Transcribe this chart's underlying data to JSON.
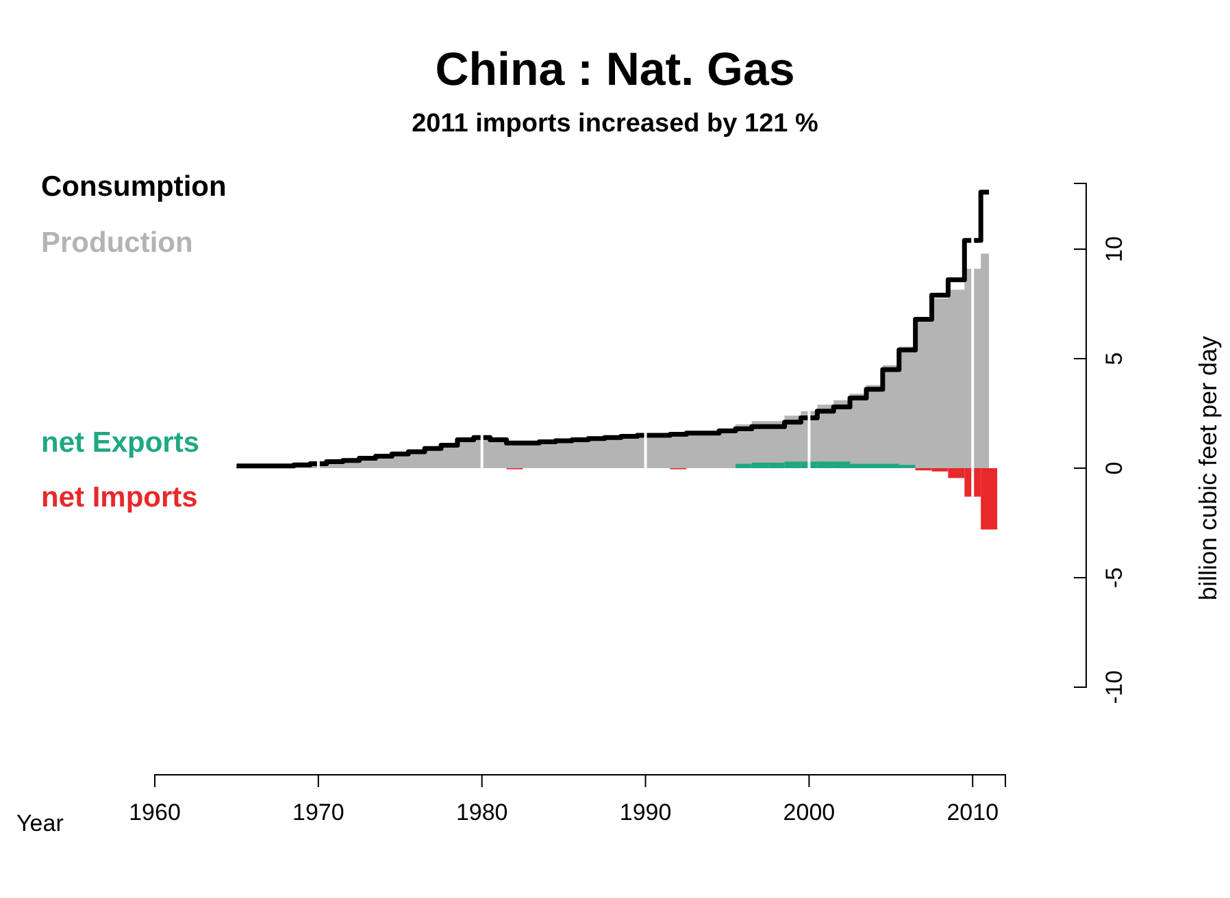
{
  "chart_data": {
    "type": "step",
    "title": "China :  Nat. Gas",
    "subtitle": "2011 imports increased by 121 %",
    "xlabel": "Year",
    "ylabel": "billion cubic feet per day",
    "x": [
      1965,
      1966,
      1967,
      1968,
      1969,
      1970,
      1971,
      1972,
      1973,
      1974,
      1975,
      1976,
      1977,
      1978,
      1979,
      1980,
      1981,
      1982,
      1983,
      1984,
      1985,
      1986,
      1987,
      1988,
      1989,
      1990,
      1991,
      1992,
      1993,
      1994,
      1995,
      1996,
      1997,
      1998,
      1999,
      2000,
      2001,
      2002,
      2003,
      2004,
      2005,
      2006,
      2007,
      2008,
      2009,
      2010,
      2011
    ],
    "xlim": [
      1960,
      2012
    ],
    "xticks": [
      1960,
      1970,
      1980,
      1990,
      2000,
      2010
    ],
    "ylim": [
      -10,
      13
    ],
    "yticks": [
      -10,
      -5,
      0,
      5,
      10
    ],
    "grid": "x",
    "legend": "top left",
    "series": [
      {
        "name": "Production",
        "type": "area",
        "color": "#b4b4b4",
        "values": [
          0.1,
          0.1,
          0.1,
          0.1,
          0.15,
          0.2,
          0.3,
          0.35,
          0.45,
          0.55,
          0.65,
          0.75,
          0.9,
          1.05,
          1.3,
          1.4,
          1.3,
          1.15,
          1.15,
          1.2,
          1.25,
          1.3,
          1.35,
          1.4,
          1.45,
          1.5,
          1.5,
          1.5,
          1.6,
          1.6,
          1.7,
          2.0,
          2.15,
          2.15,
          2.4,
          2.6,
          2.9,
          3.1,
          3.4,
          3.8,
          4.7,
          5.55,
          6.7,
          7.75,
          8.15,
          9.1,
          9.8
        ]
      },
      {
        "name": "Consumption",
        "color": "#000000",
        "values": [
          0.1,
          0.1,
          0.1,
          0.1,
          0.15,
          0.2,
          0.3,
          0.35,
          0.45,
          0.55,
          0.65,
          0.75,
          0.9,
          1.05,
          1.3,
          1.4,
          1.3,
          1.15,
          1.15,
          1.2,
          1.25,
          1.3,
          1.35,
          1.4,
          1.45,
          1.5,
          1.5,
          1.55,
          1.6,
          1.6,
          1.7,
          1.8,
          1.9,
          1.9,
          2.1,
          2.3,
          2.6,
          2.8,
          3.2,
          3.6,
          4.5,
          5.4,
          6.8,
          7.9,
          8.6,
          10.4,
          12.6
        ]
      },
      {
        "name": "net Exports",
        "type": "bar",
        "color": "#1ea882",
        "values": [
          null,
          null,
          null,
          null,
          null,
          null,
          null,
          null,
          null,
          null,
          null,
          null,
          null,
          null,
          null,
          null,
          null,
          null,
          null,
          null,
          null,
          null,
          null,
          null,
          null,
          null,
          null,
          null,
          null,
          null,
          null,
          0.2,
          0.25,
          0.25,
          0.3,
          0.3,
          0.3,
          0.3,
          0.2,
          0.2,
          0.2,
          0.15,
          null,
          null,
          null,
          null,
          null
        ]
      },
      {
        "name": "net Imports",
        "type": "bar",
        "color": "#e8282a",
        "values": [
          null,
          null,
          null,
          null,
          null,
          null,
          null,
          null,
          null,
          null,
          null,
          null,
          null,
          null,
          null,
          null,
          null,
          -0.05,
          null,
          null,
          null,
          null,
          null,
          null,
          null,
          null,
          null,
          -0.05,
          null,
          null,
          null,
          null,
          null,
          null,
          null,
          null,
          null,
          null,
          null,
          null,
          null,
          null,
          -0.1,
          -0.15,
          -0.45,
          -1.3,
          -2.8
        ]
      }
    ]
  }
}
